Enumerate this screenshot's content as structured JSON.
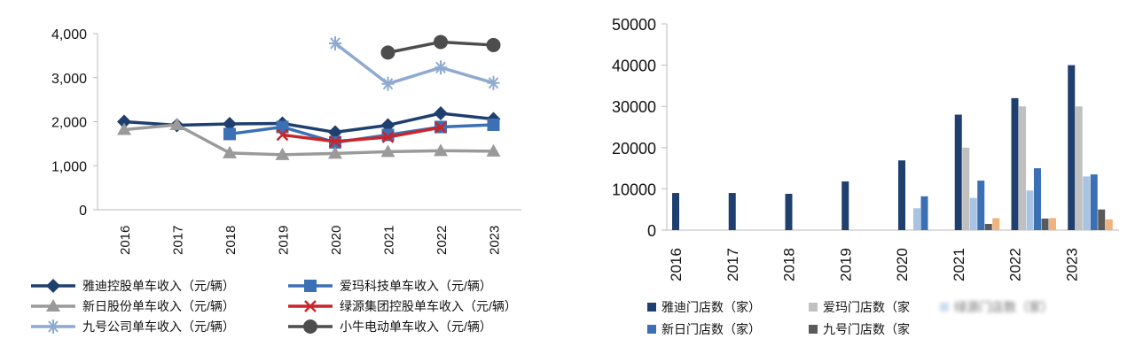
{
  "chart_data": [
    {
      "type": "line",
      "categories": [
        "2016",
        "2017",
        "2018",
        "2019",
        "2020",
        "2021",
        "2022",
        "2023"
      ],
      "ylim": [
        0,
        4000
      ],
      "yticks": [
        "0",
        "1,000",
        "2,000",
        "3,000",
        "4,000"
      ],
      "grid": false,
      "legend": "bottom",
      "series": [
        {
          "name": "雅迪控股单车收入（元/辆）",
          "color": "#1f3f6e",
          "marker": "diamond",
          "values": [
            2000,
            1920,
            1950,
            1960,
            1760,
            1920,
            2190,
            2060
          ]
        },
        {
          "name": "爱玛科技单车收入（元/辆）",
          "color": "#3b70b5",
          "marker": "square",
          "values": [
            null,
            null,
            1720,
            1880,
            1530,
            1700,
            1880,
            1930
          ]
        },
        {
          "name": "新日股份单车收入（元/辆）",
          "color": "#9a9a9a",
          "marker": "triangle",
          "values": [
            1820,
            1930,
            1290,
            1250,
            1280,
            1320,
            1340,
            1330
          ]
        },
        {
          "name": "绿源集团控股单车收入（元/辆）",
          "color": "#c8262b",
          "marker": "x",
          "values": [
            null,
            null,
            null,
            1700,
            1550,
            1650,
            1870,
            null
          ]
        },
        {
          "name": "九号公司单车收入（元/辆）",
          "color": "#8faad0",
          "marker": "star",
          "values": [
            null,
            null,
            null,
            null,
            3780,
            2860,
            3230,
            2880
          ]
        },
        {
          "name": "小牛电动单车收入（元/辆）",
          "color": "#4d4d4d",
          "marker": "circle",
          "values": [
            null,
            null,
            null,
            null,
            null,
            3570,
            3810,
            3740
          ]
        }
      ]
    },
    {
      "type": "bar",
      "categories": [
        "2016",
        "2017",
        "2018",
        "2019",
        "2020",
        "2021",
        "2022",
        "2023"
      ],
      "ylim": [
        0,
        50000
      ],
      "yticks": [
        "0",
        "10000",
        "20000",
        "30000",
        "40000",
        "50000"
      ],
      "grid": false,
      "legend": "bottom",
      "series": [
        {
          "name": "雅迪门店数（家）",
          "color": "#1f3f6e",
          "values": [
            9000,
            9000,
            8800,
            11800,
            16900,
            28000,
            32000,
            40000
          ]
        },
        {
          "name": "爱玛门店数（家",
          "color": "#c0c0c0",
          "values": [
            null,
            null,
            null,
            null,
            null,
            20000,
            30000,
            30000
          ]
        },
        {
          "name": "绿源门店数（家）",
          "color": "#a9c3e3",
          "values": [
            null,
            null,
            null,
            null,
            5300,
            7800,
            9600,
            13000
          ]
        },
        {
          "name": "新日门店数（家）",
          "color": "#3b70b5",
          "values": [
            null,
            null,
            null,
            null,
            8200,
            12000,
            15000,
            13500
          ]
        },
        {
          "name": "九号门店数（家",
          "color": "#5a5a5a",
          "values": [
            null,
            null,
            null,
            null,
            null,
            1500,
            2800,
            5000
          ]
        },
        {
          "color": "#f0b27f",
          "values": [
            null,
            null,
            null,
            null,
            null,
            2900,
            2900,
            2600
          ]
        }
      ]
    }
  ]
}
